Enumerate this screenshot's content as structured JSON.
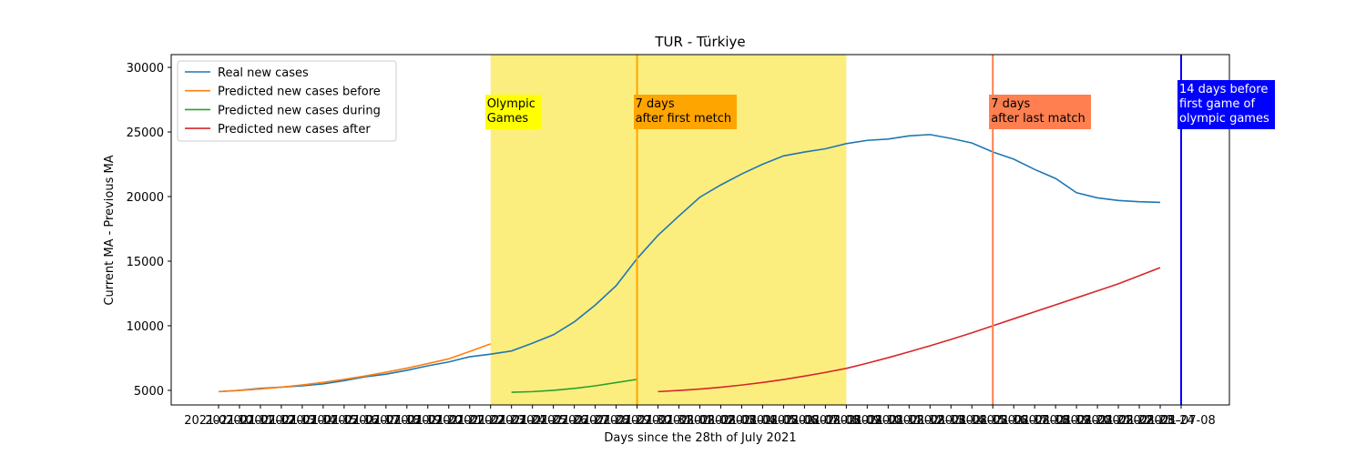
{
  "chart_data": {
    "type": "line",
    "title": "TUR - Türkiye",
    "xlabel": "Days since the 28th of July 2021",
    "ylabel": "Current MA - Previous MA",
    "categories": [
      "2021-07-10",
      "2021-07-11",
      "2021-07-12",
      "2021-07-13",
      "2021-07-14",
      "2021-07-15",
      "2021-07-16",
      "2021-07-17",
      "2021-07-18",
      "2021-07-19",
      "2021-07-20",
      "2021-07-21",
      "2021-07-22",
      "2021-07-23",
      "2021-07-24",
      "2021-07-25",
      "2021-07-26",
      "2021-07-27",
      "2021-07-28",
      "2021-07-29",
      "2021-07-30",
      "2021-07-31",
      "2021-08-01",
      "2021-08-02",
      "2021-08-03",
      "2021-08-04",
      "2021-08-05",
      "2021-08-06",
      "2021-08-07",
      "2021-08-08",
      "2021-08-09",
      "2021-08-10",
      "2021-08-11",
      "2021-08-12",
      "2021-08-13",
      "2021-08-14",
      "2021-08-15",
      "2021-08-16",
      "2021-08-17",
      "2021-08-18",
      "2021-08-19",
      "2021-08-20",
      "2021-08-21",
      "2021-08-22",
      "2021-08-23",
      "2021-08-24",
      "2021-07-08"
    ],
    "series": [
      {
        "name": "Real new cases",
        "color": "#1f77b4",
        "values": [
          4900,
          5000,
          5150,
          5250,
          5350,
          5500,
          5750,
          6050,
          6250,
          6550,
          6900,
          7200,
          7600,
          7800,
          8050,
          8650,
          9300,
          10300,
          11600,
          13100,
          15200,
          17000,
          18500,
          19950,
          20900,
          21750,
          22500,
          23150,
          23450,
          23700,
          24100,
          24350,
          24450,
          24700,
          24800,
          24500,
          24150,
          23450,
          22900,
          22100,
          21400,
          20300,
          19900,
          19700,
          19600,
          19550,
          null
        ]
      },
      {
        "name": "Predicted new cases before",
        "color": "#ff7f0e",
        "values": [
          4900,
          4990,
          5110,
          5250,
          5420,
          5620,
          5850,
          6110,
          6400,
          6720,
          7070,
          7440,
          8010,
          8600,
          null,
          null,
          null,
          null,
          null,
          null,
          null,
          null,
          null,
          null,
          null,
          null,
          null,
          null,
          null,
          null,
          null,
          null,
          null,
          null,
          null,
          null,
          null,
          null,
          null,
          null,
          null,
          null,
          null,
          null,
          null,
          null,
          null
        ]
      },
      {
        "name": "Predicted new cases during",
        "color": "#2ca02c",
        "values": [
          null,
          null,
          null,
          null,
          null,
          null,
          null,
          null,
          null,
          null,
          null,
          null,
          null,
          null,
          4850,
          4900,
          5000,
          5150,
          5350,
          5600,
          5850,
          null,
          null,
          null,
          null,
          null,
          null,
          null,
          null,
          null,
          null,
          null,
          null,
          null,
          null,
          null,
          null,
          null,
          null,
          null,
          null,
          null,
          null,
          null,
          null,
          null,
          null
        ]
      },
      {
        "name": "Predicted new cases after",
        "color": "#d62728",
        "values": [
          null,
          null,
          null,
          null,
          null,
          null,
          null,
          null,
          null,
          null,
          null,
          null,
          null,
          null,
          null,
          null,
          null,
          null,
          null,
          null,
          null,
          4900,
          4990,
          5100,
          5240,
          5410,
          5610,
          5840,
          6100,
          6390,
          6700,
          7100,
          7530,
          7980,
          8450,
          8940,
          9450,
          10000,
          10540,
          11080,
          11620,
          12160,
          12700,
          13250,
          13870,
          14500,
          null
        ]
      }
    ],
    "ylim": [
      3870,
      30990
    ],
    "yticks": [
      5000,
      10000,
      15000,
      20000,
      25000,
      30000
    ],
    "legend": "upper left",
    "spans": [
      {
        "start": "2021-07-23",
        "end": "2021-08-09",
        "color": "#fbee7e",
        "label": "Olympic\nGames",
        "label_bg": "#ffff00",
        "label_color": "#000000"
      }
    ],
    "vlines": [
      {
        "x": "2021-07-30",
        "color": "#ffa500",
        "label": "7 days\nafter first metch",
        "label_bg": "#ffa500",
        "label_color": "#000000"
      },
      {
        "x": "2021-08-16",
        "color": "#ff7f50",
        "label": "7 days\nafter last match",
        "label_bg": "#ff7f50",
        "label_color": "#000000"
      },
      {
        "x": "2021-07-08",
        "color": "#0000ff",
        "label": "14 days before\nfirst game of\nolympic games",
        "label_bg": "#0000ff",
        "label_color": "#ffffff"
      }
    ]
  }
}
